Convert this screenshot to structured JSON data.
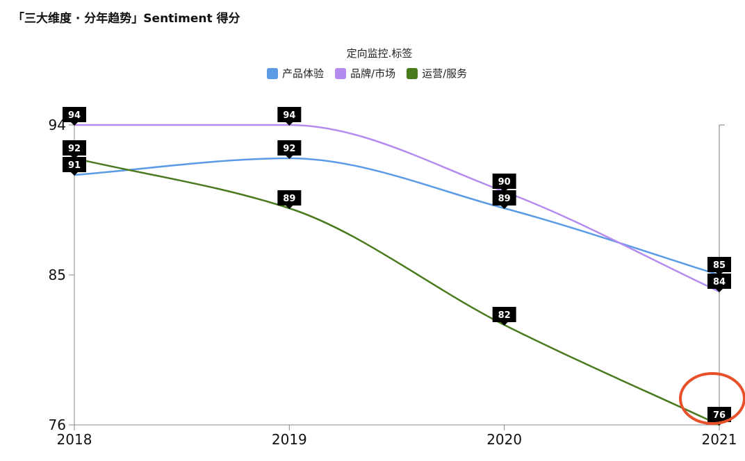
{
  "page_title": "「三大维度 · 分年趋势」Sentiment 得分",
  "legend": {
    "title": "定向监控.标签"
  },
  "chart_data": {
    "type": "line",
    "title": "「三大维度 · 分年趋势」Sentiment 得分",
    "x": [
      "2018",
      "2019",
      "2020",
      "2021"
    ],
    "yticks": [
      76,
      85,
      94
    ],
    "ylim": [
      76,
      94
    ],
    "grid": false,
    "legend_placement": "top-center",
    "series": [
      {
        "name": "产品体验",
        "values": [
          91,
          92,
          89,
          85
        ],
        "color": "#5b9be6"
      },
      {
        "name": "品牌/市场",
        "values": [
          94,
          94,
          90,
          84
        ],
        "color": "#b48cf0"
      },
      {
        "name": "运营/服务",
        "values": [
          92,
          89,
          82,
          76
        ],
        "color": "#4a7a1e"
      }
    ],
    "highlight": {
      "series": "运营/服务",
      "x": "2021",
      "color": "#e8502a"
    }
  }
}
